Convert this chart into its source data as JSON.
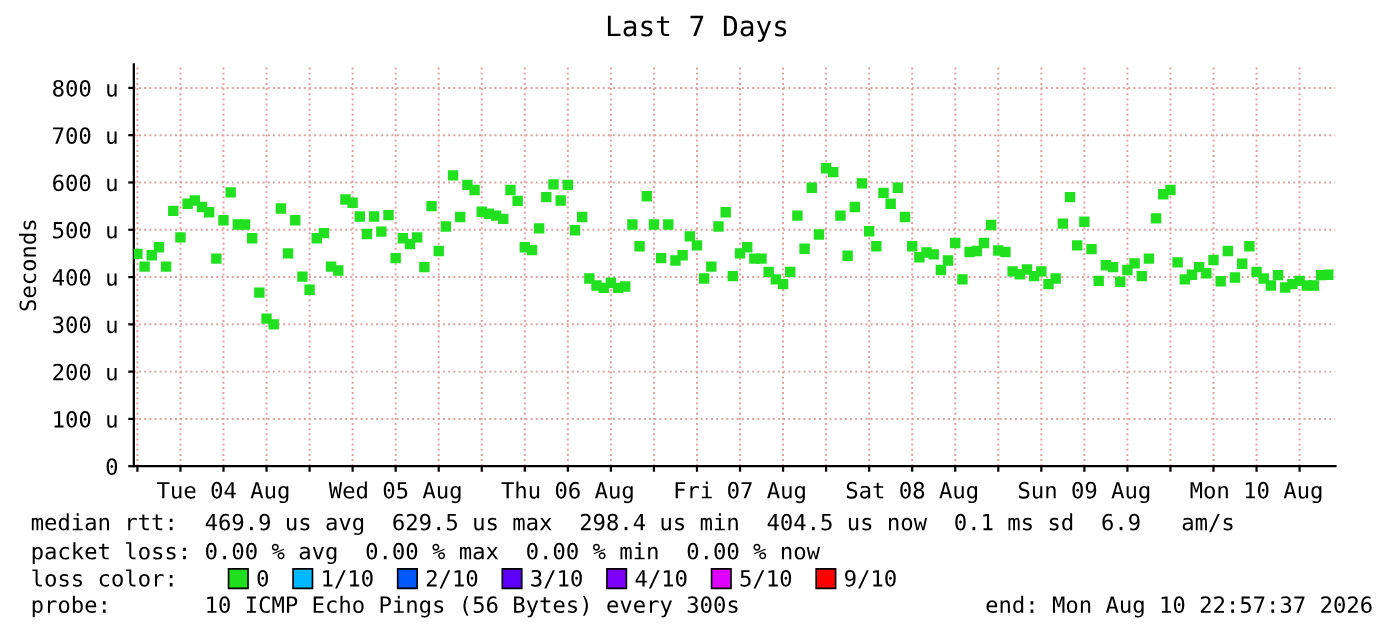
{
  "chart_data": {
    "type": "scatter",
    "title": "Last 7 Days",
    "ylabel": "Seconds",
    "x": [
      "2026-08-04T00:00",
      "2026-08-04T01:00",
      "2026-08-04T02:00",
      "2026-08-04T03:00",
      "2026-08-04T04:00",
      "2026-08-04T05:00",
      "2026-08-04T06:00",
      "2026-08-04T07:00",
      "2026-08-04T08:00",
      "2026-08-04T09:00",
      "2026-08-04T10:00",
      "2026-08-04T11:00",
      "2026-08-04T12:00",
      "2026-08-04T13:00",
      "2026-08-04T14:00",
      "2026-08-04T15:00",
      "2026-08-04T16:00",
      "2026-08-04T17:00",
      "2026-08-04T18:00",
      "2026-08-04T19:00",
      "2026-08-04T20:00",
      "2026-08-04T21:00",
      "2026-08-04T22:00",
      "2026-08-04T23:00",
      "2026-08-05T00:00",
      "2026-08-05T01:00",
      "2026-08-05T02:00",
      "2026-08-05T03:00",
      "2026-08-05T04:00",
      "2026-08-05T05:00",
      "2026-08-05T06:00",
      "2026-08-05T07:00",
      "2026-08-05T08:00",
      "2026-08-05T09:00",
      "2026-08-05T10:00",
      "2026-08-05T11:00",
      "2026-08-05T12:00",
      "2026-08-05T13:00",
      "2026-08-05T14:00",
      "2026-08-05T15:00",
      "2026-08-05T16:00",
      "2026-08-05T17:00",
      "2026-08-05T18:00",
      "2026-08-05T19:00",
      "2026-08-05T20:00",
      "2026-08-05T21:00",
      "2026-08-05T22:00",
      "2026-08-05T23:00",
      "2026-08-06T00:00",
      "2026-08-06T01:00",
      "2026-08-06T02:00",
      "2026-08-06T03:00",
      "2026-08-06T04:00",
      "2026-08-06T05:00",
      "2026-08-06T06:00",
      "2026-08-06T07:00",
      "2026-08-06T08:00",
      "2026-08-06T09:00",
      "2026-08-06T10:00",
      "2026-08-06T11:00",
      "2026-08-06T12:00",
      "2026-08-06T13:00",
      "2026-08-06T14:00",
      "2026-08-06T15:00",
      "2026-08-06T16:00",
      "2026-08-06T17:00",
      "2026-08-06T18:00",
      "2026-08-06T19:00",
      "2026-08-06T20:00",
      "2026-08-06T21:00",
      "2026-08-06T22:00",
      "2026-08-06T23:00",
      "2026-08-07T00:00",
      "2026-08-07T01:00",
      "2026-08-07T02:00",
      "2026-08-07T03:00",
      "2026-08-07T04:00",
      "2026-08-07T05:00",
      "2026-08-07T06:00",
      "2026-08-07T07:00",
      "2026-08-07T08:00",
      "2026-08-07T09:00",
      "2026-08-07T10:00",
      "2026-08-07T11:00",
      "2026-08-07T12:00",
      "2026-08-07T13:00",
      "2026-08-07T14:00",
      "2026-08-07T15:00",
      "2026-08-07T16:00",
      "2026-08-07T17:00",
      "2026-08-07T18:00",
      "2026-08-07T19:00",
      "2026-08-07T20:00",
      "2026-08-07T21:00",
      "2026-08-07T22:00",
      "2026-08-07T23:00",
      "2026-08-08T00:00",
      "2026-08-08T01:00",
      "2026-08-08T02:00",
      "2026-08-08T03:00",
      "2026-08-08T04:00",
      "2026-08-08T05:00",
      "2026-08-08T06:00",
      "2026-08-08T07:00",
      "2026-08-08T08:00",
      "2026-08-08T09:00",
      "2026-08-08T10:00",
      "2026-08-08T11:00",
      "2026-08-08T12:00",
      "2026-08-08T13:00",
      "2026-08-08T14:00",
      "2026-08-08T15:00",
      "2026-08-08T16:00",
      "2026-08-08T17:00",
      "2026-08-08T18:00",
      "2026-08-08T19:00",
      "2026-08-08T20:00",
      "2026-08-08T21:00",
      "2026-08-08T22:00",
      "2026-08-08T23:00",
      "2026-08-09T00:00",
      "2026-08-09T01:00",
      "2026-08-09T02:00",
      "2026-08-09T03:00",
      "2026-08-09T04:00",
      "2026-08-09T05:00",
      "2026-08-09T06:00",
      "2026-08-09T07:00",
      "2026-08-09T08:00",
      "2026-08-09T09:00",
      "2026-08-09T10:00",
      "2026-08-09T11:00",
      "2026-08-09T12:00",
      "2026-08-09T13:00",
      "2026-08-09T14:00",
      "2026-08-09T15:00",
      "2026-08-09T16:00",
      "2026-08-09T17:00",
      "2026-08-09T18:00",
      "2026-08-09T19:00",
      "2026-08-09T20:00",
      "2026-08-09T21:00",
      "2026-08-09T22:00",
      "2026-08-09T23:00",
      "2026-08-10T00:00",
      "2026-08-10T01:00",
      "2026-08-10T02:00",
      "2026-08-10T03:00",
      "2026-08-10T04:00",
      "2026-08-10T05:00",
      "2026-08-10T06:00",
      "2026-08-10T07:00",
      "2026-08-10T08:00",
      "2026-08-10T09:00",
      "2026-08-10T10:00",
      "2026-08-10T11:00",
      "2026-08-10T12:00",
      "2026-08-10T13:00",
      "2026-08-10T14:00",
      "2026-08-10T15:00",
      "2026-08-10T16:00",
      "2026-08-10T17:00",
      "2026-08-10T18:00",
      "2026-08-10T19:00",
      "2026-08-10T20:00",
      "2026-08-10T21:00",
      "2026-08-10T22:00"
    ],
    "series": [
      {
        "name": "0",
        "color": "#20e020",
        "values": [
          449,
          422,
          446,
          463,
          422,
          540,
          484,
          555,
          562,
          548,
          537,
          439,
          520,
          579,
          511,
          511,
          482,
          367,
          312,
          300,
          545,
          450,
          520,
          401,
          373,
          482,
          493,
          422,
          414,
          564,
          557,
          528,
          491,
          528,
          496,
          531,
          440,
          482,
          470,
          484,
          421,
          550,
          455,
          507,
          615,
          527,
          595,
          584,
          538,
          534,
          530,
          523,
          584,
          561,
          463,
          457,
          503,
          569,
          596,
          562,
          595,
          499,
          527,
          397,
          382,
          377,
          388,
          377,
          380,
          511,
          465,
          571,
          511,
          440,
          511,
          435,
          446,
          486,
          467,
          397,
          422,
          507,
          537,
          402,
          450,
          463,
          439,
          439,
          411,
          395,
          385,
          411,
          530,
          460,
          589,
          490,
          630,
          622,
          530,
          445,
          548,
          598,
          497,
          465,
          578,
          555,
          589,
          527,
          465,
          442,
          452,
          448,
          415,
          435,
          472,
          395,
          453,
          455,
          472,
          510,
          456,
          453,
          412,
          406,
          416,
          402,
          412,
          385,
          397,
          513,
          569,
          467,
          517,
          459,
          392,
          425,
          421,
          390,
          415,
          429,
          402,
          439,
          524,
          575,
          584,
          431,
          395,
          405,
          421,
          408,
          436,
          391,
          455,
          399,
          428,
          465,
          411,
          397,
          382,
          404,
          378,
          385,
          392,
          382,
          382,
          404,
          405
        ]
      },
      {
        "name": "1/10",
        "color": "#00b8ff",
        "values": [
          null,
          null,
          null,
          null,
          null,
          null,
          null,
          null,
          null,
          null,
          null,
          null,
          null,
          null,
          null,
          null,
          null,
          null,
          null,
          null,
          null,
          null,
          null,
          null,
          null,
          null,
          null,
          null,
          null,
          null,
          null,
          null,
          null,
          null,
          null,
          null,
          null,
          null,
          null,
          null,
          null,
          null,
          null,
          null,
          null,
          null,
          null,
          null,
          null,
          null,
          null,
          null,
          null,
          null,
          null,
          null,
          null,
          null,
          null,
          null,
          null,
          null,
          null,
          null,
          null,
          null,
          null,
          null,
          null,
          null,
          null,
          null,
          null,
          null,
          null,
          null,
          null,
          null,
          null,
          null,
          null,
          null,
          null,
          null,
          null,
          null,
          null,
          null,
          null,
          null,
          null,
          null,
          null,
          null,
          null,
          null,
          null,
          null,
          null,
          null,
          null,
          null,
          null,
          null,
          null,
          null,
          null,
          null,
          null,
          null,
          null,
          null,
          null,
          null,
          null,
          null,
          null,
          null,
          null,
          null,
          null,
          null,
          null,
          null,
          null,
          null,
          null,
          null,
          null,
          null,
          null,
          null,
          null,
          null,
          null,
          null,
          null,
          null,
          null,
          null,
          null,
          null,
          null,
          null,
          null,
          null,
          null,
          null,
          null,
          null,
          null,
          null,
          null,
          null,
          null,
          null,
          null,
          null,
          null,
          null,
          null,
          null,
          null,
          null,
          null,
          null,
          null
        ]
      },
      {
        "name": "2/10",
        "color": "#0059ff",
        "values": [
          null,
          null,
          null,
          null,
          null,
          null,
          null,
          null,
          null,
          null,
          null,
          null,
          null,
          null,
          null,
          null,
          null,
          null,
          null,
          null,
          null,
          null,
          null,
          null,
          null,
          null,
          null,
          null,
          null,
          null,
          null,
          null,
          null,
          null,
          null,
          null,
          null,
          null,
          null,
          null,
          null,
          null,
          null,
          null,
          null,
          null,
          null,
          null,
          null,
          null,
          null,
          null,
          null,
          null,
          null,
          null,
          null,
          null,
          null,
          null,
          null,
          null,
          null,
          null,
          null,
          null,
          null,
          null,
          null,
          null,
          null,
          null,
          null,
          null,
          null,
          null,
          null,
          null,
          null,
          null,
          null,
          null,
          null,
          null,
          null,
          null,
          null,
          null,
          null,
          null,
          null,
          null,
          null,
          null,
          null,
          null,
          null,
          null,
          null,
          null,
          null,
          null,
          null,
          null,
          null,
          null,
          null,
          null,
          null,
          null,
          null,
          null,
          null,
          null,
          null,
          null,
          null,
          null,
          null,
          null,
          null,
          null,
          null,
          null,
          null,
          null,
          null,
          null,
          null,
          null,
          null,
          null,
          null,
          null,
          null,
          null,
          null,
          null,
          null,
          null,
          null,
          null,
          null,
          null,
          null,
          null,
          null,
          null,
          null,
          null,
          null,
          null,
          null,
          null,
          null,
          null,
          null,
          null,
          null,
          null,
          null,
          null,
          null,
          null,
          null,
          null,
          null
        ]
      },
      {
        "name": "3/10",
        "color": "#5e00ff",
        "values": [
          null,
          null,
          null,
          null,
          null,
          null,
          null,
          null,
          null,
          null,
          null,
          null,
          null,
          null,
          null,
          null,
          null,
          null,
          null,
          null,
          null,
          null,
          null,
          null,
          null,
          null,
          null,
          null,
          null,
          null,
          null,
          null,
          null,
          null,
          null,
          null,
          null,
          null,
          null,
          null,
          null,
          null,
          null,
          null,
          null,
          null,
          null,
          null,
          null,
          null,
          null,
          null,
          null,
          null,
          null,
          null,
          null,
          null,
          null,
          null,
          null,
          null,
          null,
          null,
          null,
          null,
          null,
          null,
          null,
          null,
          null,
          null,
          null,
          null,
          null,
          null,
          null,
          null,
          null,
          null,
          null,
          null,
          null,
          null,
          null,
          null,
          null,
          null,
          null,
          null,
          null,
          null,
          null,
          null,
          null,
          null,
          null,
          null,
          null,
          null,
          null,
          null,
          null,
          null,
          null,
          null,
          null,
          null,
          null,
          null,
          null,
          null,
          null,
          null,
          null,
          null,
          null,
          null,
          null,
          null,
          null,
          null,
          null,
          null,
          null,
          null,
          null,
          null,
          null,
          null,
          null,
          null,
          null,
          null,
          null,
          null,
          null,
          null,
          null,
          null,
          null,
          null,
          null,
          null,
          null,
          null,
          null,
          null,
          null,
          null,
          null,
          null,
          null,
          null,
          null,
          null,
          null,
          null,
          null,
          null,
          null,
          null,
          null,
          null,
          null,
          null,
          null
        ]
      },
      {
        "name": "4/10",
        "color": "#7e00ff",
        "values": [
          null,
          null,
          null,
          null,
          null,
          null,
          null,
          null,
          null,
          null,
          null,
          null,
          null,
          null,
          null,
          null,
          null,
          null,
          null,
          null,
          null,
          null,
          null,
          null,
          null,
          null,
          null,
          null,
          null,
          null,
          null,
          null,
          null,
          null,
          null,
          null,
          null,
          null,
          null,
          null,
          null,
          null,
          null,
          null,
          null,
          null,
          null,
          null,
          null,
          null,
          null,
          null,
          null,
          null,
          null,
          null,
          null,
          null,
          null,
          null,
          null,
          null,
          null,
          null,
          null,
          null,
          null,
          null,
          null,
          null,
          null,
          null,
          null,
          null,
          null,
          null,
          null,
          null,
          null,
          null,
          null,
          null,
          null,
          null,
          null,
          null,
          null,
          null,
          null,
          null,
          null,
          null,
          null,
          null,
          null,
          null,
          null,
          null,
          null,
          null,
          null,
          null,
          null,
          null,
          null,
          null,
          null,
          null,
          null,
          null,
          null,
          null,
          null,
          null,
          null,
          null,
          null,
          null,
          null,
          null,
          null,
          null,
          null,
          null,
          null,
          null,
          null,
          null,
          null,
          null,
          null,
          null,
          null,
          null,
          null,
          null,
          null,
          null,
          null,
          null,
          null,
          null,
          null,
          null,
          null,
          null,
          null,
          null,
          null,
          null,
          null,
          null,
          null,
          null,
          null,
          null,
          null,
          null,
          null,
          null,
          null,
          null,
          null,
          null,
          null,
          null,
          null
        ]
      },
      {
        "name": "5/10",
        "color": "#dd00ff",
        "values": [
          null,
          null,
          null,
          null,
          null,
          null,
          null,
          null,
          null,
          null,
          null,
          null,
          null,
          null,
          null,
          null,
          null,
          null,
          null,
          null,
          null,
          null,
          null,
          null,
          null,
          null,
          null,
          null,
          null,
          null,
          null,
          null,
          null,
          null,
          null,
          null,
          null,
          null,
          null,
          null,
          null,
          null,
          null,
          null,
          null,
          null,
          null,
          null,
          null,
          null,
          null,
          null,
          null,
          null,
          null,
          null,
          null,
          null,
          null,
          null,
          null,
          null,
          null,
          null,
          null,
          null,
          null,
          null,
          null,
          null,
          null,
          null,
          null,
          null,
          null,
          null,
          null,
          null,
          null,
          null,
          null,
          null,
          null,
          null,
          null,
          null,
          null,
          null,
          null,
          null,
          null,
          null,
          null,
          null,
          null,
          null,
          null,
          null,
          null,
          null,
          null,
          null,
          null,
          null,
          null,
          null,
          null,
          null,
          null,
          null,
          null,
          null,
          null,
          null,
          null,
          null,
          null,
          null,
          null,
          null,
          null,
          null,
          null,
          null,
          null,
          null,
          null,
          null,
          null,
          null,
          null,
          null,
          null,
          null,
          null,
          null,
          null,
          null,
          null,
          null,
          null,
          null,
          null,
          null,
          null,
          null,
          null,
          null,
          null,
          null,
          null,
          null,
          null,
          null,
          null,
          null,
          null,
          null,
          null,
          null,
          null,
          null,
          null,
          null,
          null,
          null,
          null
        ]
      },
      {
        "name": "9/10",
        "color": "#ff0000",
        "values": [
          null,
          null,
          null,
          null,
          null,
          null,
          null,
          null,
          null,
          null,
          null,
          null,
          null,
          null,
          null,
          null,
          null,
          null,
          null,
          null,
          null,
          null,
          null,
          null,
          null,
          null,
          null,
          null,
          null,
          null,
          null,
          null,
          null,
          null,
          null,
          null,
          null,
          null,
          null,
          null,
          null,
          null,
          null,
          null,
          null,
          null,
          null,
          null,
          null,
          null,
          null,
          null,
          null,
          null,
          null,
          null,
          null,
          null,
          null,
          null,
          null,
          null,
          null,
          null,
          null,
          null,
          null,
          null,
          null,
          null,
          null,
          null,
          null,
          null,
          null,
          null,
          null,
          null,
          null,
          null,
          null,
          null,
          null,
          null,
          null,
          null,
          null,
          null,
          null,
          null,
          null,
          null,
          null,
          null,
          null,
          null,
          null,
          null,
          null,
          null,
          null,
          null,
          null,
          null,
          null,
          null,
          null,
          null,
          null,
          null,
          null,
          null,
          null,
          null,
          null,
          null,
          null,
          null,
          null,
          null,
          null,
          null,
          null,
          null,
          null,
          null,
          null,
          null,
          null,
          null,
          null,
          null,
          null,
          null,
          null,
          null,
          null,
          null,
          null,
          null,
          null,
          null,
          null,
          null,
          null,
          null,
          null,
          null,
          null,
          null,
          null,
          null,
          null,
          null,
          null,
          null,
          null,
          null,
          null,
          null,
          null,
          null,
          null,
          null,
          null,
          null,
          null
        ]
      }
    ],
    "legend": "bottom",
    "legend_title": "loss color:",
    "marker": "square",
    "grid": true,
    "xlim": [
      "2026-08-03T23:30",
      "2026-08-10T23:00"
    ],
    "xticks": [
      {
        "value": "2026-08-04T00:00",
        "label": null
      },
      {
        "value": "2026-08-04T06:00",
        "label": null
      },
      {
        "value": "2026-08-04T12:00",
        "label": "Tue 04 Aug"
      },
      {
        "value": "2026-08-04T18:00",
        "label": null
      },
      {
        "value": "2026-08-05T00:00",
        "label": null
      },
      {
        "value": "2026-08-05T06:00",
        "label": null
      },
      {
        "value": "2026-08-05T12:00",
        "label": "Wed 05 Aug"
      },
      {
        "value": "2026-08-05T18:00",
        "label": null
      },
      {
        "value": "2026-08-06T00:00",
        "label": null
      },
      {
        "value": "2026-08-06T06:00",
        "label": null
      },
      {
        "value": "2026-08-06T12:00",
        "label": "Thu 06 Aug"
      },
      {
        "value": "2026-08-06T18:00",
        "label": null
      },
      {
        "value": "2026-08-07T00:00",
        "label": null
      },
      {
        "value": "2026-08-07T06:00",
        "label": null
      },
      {
        "value": "2026-08-07T12:00",
        "label": "Fri 07 Aug"
      },
      {
        "value": "2026-08-07T18:00",
        "label": null
      },
      {
        "value": "2026-08-08T00:00",
        "label": null
      },
      {
        "value": "2026-08-08T06:00",
        "label": null
      },
      {
        "value": "2026-08-08T12:00",
        "label": "Sat 08 Aug"
      },
      {
        "value": "2026-08-08T18:00",
        "label": null
      },
      {
        "value": "2026-08-09T00:00",
        "label": null
      },
      {
        "value": "2026-08-09T06:00",
        "label": null
      },
      {
        "value": "2026-08-09T12:00",
        "label": "Sun 09 Aug"
      },
      {
        "value": "2026-08-09T18:00",
        "label": null
      },
      {
        "value": "2026-08-10T00:00",
        "label": null
      },
      {
        "value": "2026-08-10T06:00",
        "label": null
      },
      {
        "value": "2026-08-10T12:00",
        "label": "Mon 10 Aug"
      },
      {
        "value": "2026-08-10T18:00",
        "label": null
      }
    ],
    "ylim": [
      0,
      850
    ],
    "yticks": [
      0,
      {
        "value": 100,
        "label": "100 u"
      },
      {
        "value": 200,
        "label": "200 u"
      },
      {
        "value": 300,
        "label": "300 u"
      },
      {
        "value": 400,
        "label": "400 u"
      },
      {
        "value": 500,
        "label": "500 u"
      },
      {
        "value": 600,
        "label": "600 u"
      },
      {
        "value": 700,
        "label": "700 u"
      },
      {
        "value": 800,
        "label": "800 u"
      }
    ],
    "annotations": [
      "median rtt:  469.9 us avg  629.5 us max  298.4 us min  404.5 us now  0.1 ms sd  6.9   am/s",
      "packet loss: 0.00 % avg  0.00 % max  0.00 % min  0.00 % now",
      "probe:       10 ICMP Echo Pings (56 Bytes) every 300s",
      "end: Mon Aug 10 22:57:37 2026"
    ]
  }
}
